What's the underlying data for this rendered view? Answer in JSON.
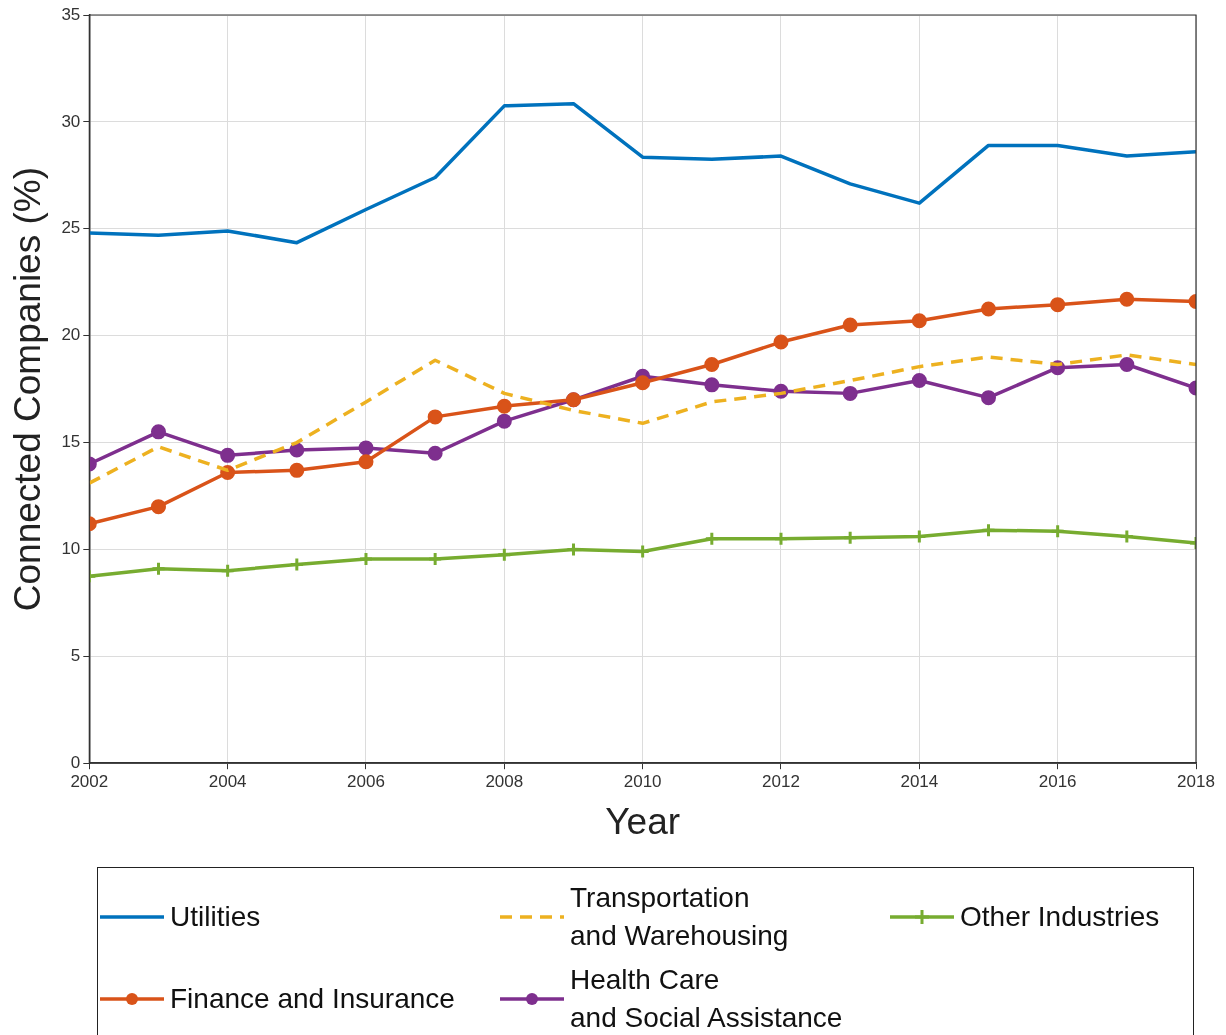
{
  "chart_data": {
    "type": "line",
    "xlabel": "Year",
    "ylabel": "Connected Companies (%)",
    "x": [
      2002,
      2003,
      2004,
      2005,
      2006,
      2007,
      2008,
      2009,
      2010,
      2011,
      2012,
      2013,
      2014,
      2015,
      2016,
      2017,
      2018
    ],
    "xlim": [
      2002,
      2018
    ],
    "xticks": [
      2002,
      2004,
      2006,
      2008,
      2010,
      2012,
      2014,
      2016,
      2018
    ],
    "ylim": [
      0,
      35
    ],
    "yticks": [
      0,
      5,
      10,
      15,
      20,
      25,
      30,
      35
    ],
    "grid": true,
    "legend": "bottom",
    "series": [
      {
        "name": "Utilities",
        "color": "#0072bd",
        "marker": "none",
        "line_style": "solid",
        "values": [
          24.8,
          24.7,
          24.9,
          24.35,
          25.9,
          27.4,
          30.75,
          30.85,
          28.35,
          28.25,
          28.4,
          27.1,
          26.2,
          28.9,
          28.9,
          28.4,
          28.6
        ]
      },
      {
        "name": "Transportation\nand Warehousing",
        "color": "#edb120",
        "marker": "none",
        "line_style": "dashed",
        "values": [
          13.1,
          14.8,
          13.7,
          15.0,
          16.9,
          18.85,
          17.3,
          16.5,
          15.9,
          16.9,
          17.3,
          17.9,
          18.55,
          19.0,
          18.65,
          19.1,
          18.65
        ]
      },
      {
        "name": "Other Industries",
        "color": "#77ac30",
        "marker": "cross",
        "line_style": "solid",
        "values": [
          8.75,
          9.1,
          9.0,
          9.3,
          9.55,
          9.55,
          9.75,
          10.0,
          9.9,
          10.5,
          10.5,
          10.55,
          10.6,
          10.9,
          10.85,
          10.6,
          10.3
        ]
      },
      {
        "name": "Finance and Insurance",
        "color": "#d95319",
        "marker": "circle",
        "line_style": "solid",
        "values": [
          11.2,
          12.0,
          13.6,
          13.7,
          14.1,
          16.2,
          16.7,
          17.0,
          17.8,
          18.65,
          19.7,
          20.5,
          20.7,
          21.25,
          21.45,
          21.7,
          21.6
        ]
      },
      {
        "name": "Health Care\nand Social Assistance",
        "color": "#7e2f8e",
        "marker": "circle",
        "line_style": "solid",
        "values": [
          14.0,
          15.5,
          14.4,
          14.65,
          14.75,
          14.5,
          16.0,
          17.0,
          18.1,
          17.7,
          17.4,
          17.3,
          17.9,
          17.1,
          18.5,
          18.65,
          17.55
        ]
      }
    ]
  }
}
